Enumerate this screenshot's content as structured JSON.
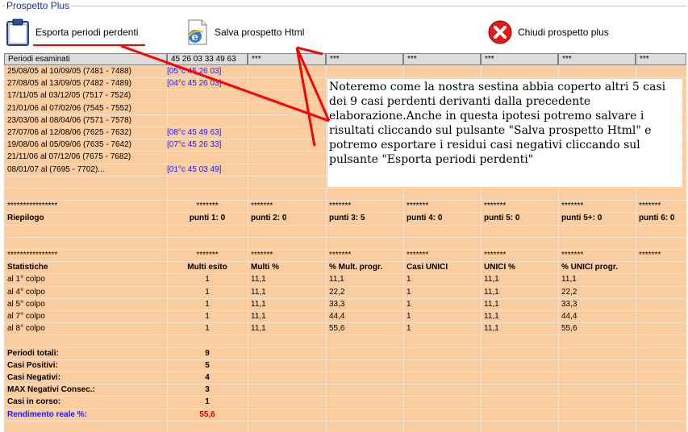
{
  "window": {
    "group_title": "Prospetto Plus"
  },
  "toolbar": {
    "export_label": "Esporta periodi perdenti",
    "save_label": "Salva prospetto Html",
    "close_label": "Chiudi prospetto plus"
  },
  "table": {
    "headers": [
      "Periodi esaminati",
      "45 26 03 33 49 63",
      "***",
      "***",
      "***",
      "***",
      "***",
      "***"
    ],
    "periods": [
      {
        "range": "25/08/05 al 10/09/05  (7481 - 7488)",
        "hit": "[05°c 45 26 03]"
      },
      {
        "range": "27/08/05 al 13/09/05  (7482 - 7489)",
        "hit": "[04°c 45 26 03]"
      },
      {
        "range": "17/11/05 al 03/12/05  (7517 - 7524)",
        "hit": ""
      },
      {
        "range": "21/01/06 al 07/02/06  (7545 - 7552)",
        "hit": ""
      },
      {
        "range": "23/03/06 al 08/04/06  (7571 - 7578)",
        "hit": ""
      },
      {
        "range": "27/07/06 al 12/08/06  (7625 - 7632)",
        "hit": "[08°c 45 49 63]"
      },
      {
        "range": "19/08/06 al 05/09/06  (7635 - 7642)",
        "hit": "[07°c 45 26 33]"
      },
      {
        "range": "21/11/06 al 07/12/06  (7675 - 7682)",
        "hit": ""
      },
      {
        "range": "08/01/07 al  (7695 - 7702)...",
        "hit": "[01°c 45 03 49]"
      }
    ],
    "stars_row": [
      "****************",
      "*******",
      "*******",
      "*******",
      "*******",
      "*******",
      "*******",
      "*******"
    ],
    "riepilogo": {
      "label": "Riepilogo",
      "values": [
        "punti 1: 0",
        "punti 2: 0",
        "punti 3: 5",
        "punti 4: 0",
        "punti 5: 0",
        "punti 5+: 0",
        "punti 6: 0"
      ]
    },
    "stars_row2": [
      "****************",
      "*******",
      "*******",
      "*******",
      "*******",
      "*******",
      "*******",
      "*******"
    ],
    "statistiche": {
      "headers": [
        "Statistiche",
        "Multi esito",
        "Multi %",
        "% Mult. progr.",
        "Casi UNICI",
        "UNICI %",
        "% UNICI progr."
      ],
      "rows": [
        [
          "al 1° colpo",
          "1",
          "11,1",
          "11,1",
          "1",
          "11,1",
          "11,1"
        ],
        [
          "al 4° colpo",
          "1",
          "11,1",
          "22,2",
          "1",
          "11,1",
          "22,2"
        ],
        [
          "al 5° colpo",
          "1",
          "11,1",
          "33,3",
          "1",
          "11,1",
          "33,3"
        ],
        [
          "al 7° colpo",
          "1",
          "11,1",
          "44,4",
          "1",
          "11,1",
          "44,4"
        ],
        [
          "al 8° colpo",
          "1",
          "11,1",
          "55,6",
          "1",
          "11,1",
          "55,6"
        ]
      ]
    },
    "totals": [
      {
        "label": "Periodi totali:",
        "value": "9"
      },
      {
        "label": "Casi Positivi:",
        "value": "5"
      },
      {
        "label": "Casi Negativi:",
        "value": "4"
      },
      {
        "label": "MAX Negativi Consec.:",
        "value": "3"
      },
      {
        "label": "Casi in corso:",
        "value": "1"
      }
    ],
    "rendimento": {
      "label": "Rendimento reale %:",
      "value": "55,6"
    }
  },
  "annotation": {
    "text": "Noteremo come la nostra sestina abbia coperto altri 5 casi dei 9 casi perdenti derivanti dalla precedente elaborazione.Anche in questa ipotesi potremo salvare i risultati cliccando sul pulsante \"Salva prospetto Html\" e potremo esportare i residui casi negativi cliccando sul pulsante \"Esporta periodi perdenti\""
  },
  "colors": {
    "grid_bg": "#fbcc9f",
    "blue_text": "#1a1aff",
    "red_text": "#e00000",
    "arrow": "#ff0000"
  },
  "icons": [
    "clipboard-icon",
    "ie-html-icon",
    "close-x-icon"
  ]
}
